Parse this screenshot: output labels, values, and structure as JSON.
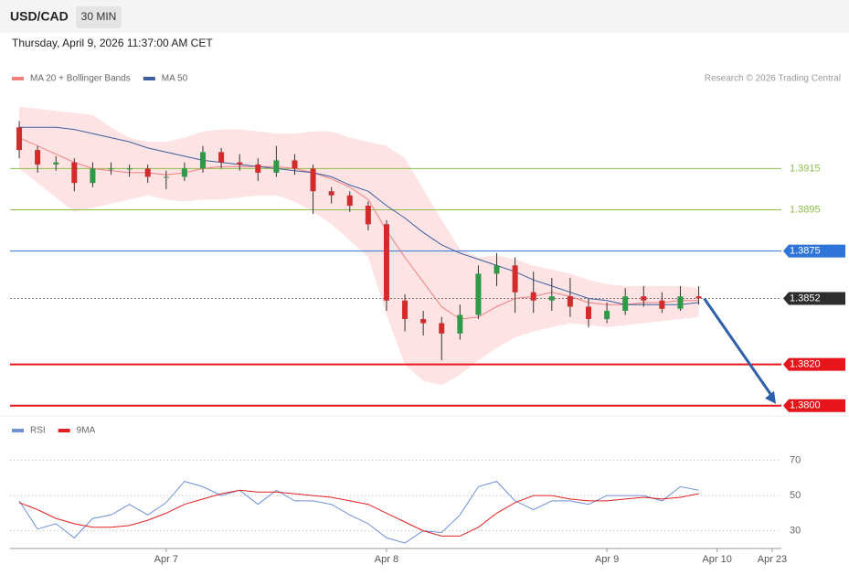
{
  "header": {
    "symbol": "USD/CAD",
    "interval": "30 MIN",
    "datetime": "Thursday, April 9, 2026 11:37:00 AM CET"
  },
  "chart_data": [
    {
      "type": "candlestick",
      "credit": "Research © 2026 Trading Central",
      "categories": [
        null,
        null,
        null,
        null,
        null,
        null,
        null,
        null,
        "Apr 7",
        null,
        null,
        null,
        null,
        null,
        null,
        null,
        null,
        null,
        null,
        null,
        "Apr 8",
        null,
        null,
        null,
        null,
        null,
        null,
        null,
        null,
        null,
        null,
        null,
        "Apr 9",
        null,
        null,
        null,
        null,
        null,
        "Apr 10",
        null,
        null,
        "Apr 23"
      ],
      "open": [
        1.3935,
        1.3924,
        1.3917,
        1.3918,
        1.3908,
        1.3915,
        1.3915,
        1.3915,
        1.3911,
        1.3911,
        1.3915,
        1.3923,
        1.3918,
        1.3917,
        1.3913,
        1.3919,
        1.3915,
        1.3904,
        1.3902,
        1.3897,
        1.3888,
        1.3851,
        1.3842,
        1.384,
        1.3835,
        1.3844,
        1.3864,
        1.3868,
        1.3855,
        1.3851,
        1.3853,
        1.3848,
        1.3842,
        1.3846,
        1.3853,
        1.3851,
        1.3847,
        1.3853,
        null,
        null,
        null,
        null
      ],
      "high": [
        1.3938,
        1.3926,
        1.3921,
        1.392,
        1.3918,
        1.3918,
        1.3917,
        1.3917,
        1.3914,
        1.3918,
        1.3926,
        1.3925,
        1.3922,
        1.392,
        1.3926,
        1.3922,
        1.3917,
        1.3906,
        1.3904,
        1.3899,
        1.389,
        1.3854,
        1.3846,
        1.3843,
        1.3849,
        1.3868,
        1.3874,
        1.3872,
        1.3865,
        1.3862,
        1.3862,
        1.3852,
        1.385,
        1.3857,
        1.3858,
        1.3855,
        1.3858,
        1.3858,
        null,
        null,
        null,
        null
      ],
      "low": [
        1.392,
        1.3913,
        1.3914,
        1.3904,
        1.3906,
        1.3912,
        1.3911,
        1.3908,
        1.3905,
        1.3909,
        1.3913,
        1.3915,
        1.3914,
        1.3909,
        1.3911,
        1.3912,
        1.3893,
        1.3898,
        1.3894,
        1.3885,
        1.3846,
        1.3836,
        1.3834,
        1.3822,
        1.3832,
        1.3842,
        1.3858,
        1.3845,
        1.3845,
        1.3846,
        1.3843,
        1.3838,
        1.384,
        1.3844,
        1.3848,
        1.3845,
        1.3846,
        1.3849,
        null,
        null,
        null,
        null
      ],
      "close": [
        1.3924,
        1.3917,
        1.3918,
        1.3908,
        1.3915,
        1.3915,
        1.3915,
        1.3911,
        1.3911,
        1.3915,
        1.3923,
        1.3918,
        1.3917,
        1.3913,
        1.3919,
        1.3915,
        1.3904,
        1.3902,
        1.3897,
        1.3888,
        1.3851,
        1.3842,
        1.384,
        1.3835,
        1.3844,
        1.3864,
        1.3868,
        1.3855,
        1.3851,
        1.3853,
        1.3848,
        1.3842,
        1.3846,
        1.3853,
        1.3851,
        1.3847,
        1.3853,
        1.3852,
        null,
        null,
        null,
        null
      ],
      "up_color": "#2e9a48",
      "down_color": "#d22b2b",
      "series": [
        {
          "name": "MA 20 + Bollinger Bands",
          "color": "#f08080",
          "band_color": "#fde3e3",
          "values": [
            1.393,
            1.3926,
            1.3922,
            1.3918,
            1.3915,
            1.3914,
            1.3913,
            1.3913,
            1.3912,
            1.3913,
            1.3915,
            1.3916,
            1.3916,
            1.3916,
            1.3916,
            1.3915,
            1.3913,
            1.391,
            1.3906,
            1.39,
            1.3885,
            1.3872,
            1.386,
            1.3848,
            1.3842,
            1.3843,
            1.3848,
            1.3852,
            1.3853,
            1.3855,
            1.3853,
            1.385,
            1.3849,
            1.3849,
            1.385,
            1.385,
            1.3851,
            1.3851,
            null,
            null,
            null,
            null
          ],
          "upper": [
            1.3945,
            1.3944,
            1.3943,
            1.3942,
            1.3941,
            1.3935,
            1.393,
            1.3928,
            1.3928,
            1.393,
            1.3933,
            1.3934,
            1.3934,
            1.3933,
            1.3932,
            1.3932,
            1.3933,
            1.3933,
            1.393,
            1.3928,
            1.3926,
            1.392,
            1.3905,
            1.389,
            1.3876,
            1.3872,
            1.3873,
            1.3871,
            1.3868,
            1.3866,
            1.3864,
            1.3861,
            1.3859,
            1.3858,
            1.3858,
            1.3858,
            1.3858,
            1.3857,
            null,
            null,
            null,
            null
          ],
          "lower": [
            1.3915,
            1.3908,
            1.3901,
            1.3894,
            1.3896,
            1.3898,
            1.39,
            1.3902,
            1.39,
            1.3899,
            1.39,
            1.39,
            1.3901,
            1.3902,
            1.3902,
            1.3899,
            1.3894,
            1.3888,
            1.388,
            1.3872,
            1.3844,
            1.382,
            1.3812,
            1.381,
            1.3815,
            1.3822,
            1.3828,
            1.3833,
            1.3836,
            1.3838,
            1.384,
            1.3839,
            1.3838,
            1.3839,
            1.384,
            1.3841,
            1.3842,
            1.3843,
            null,
            null,
            null,
            null
          ]
        },
        {
          "name": "MA 50",
          "color": "#3b5fa0",
          "values": [
            1.3935,
            1.3935,
            1.3935,
            1.3934,
            1.3932,
            1.393,
            1.3928,
            1.3925,
            1.3923,
            1.3921,
            1.3919,
            1.3918,
            1.3917,
            1.3916,
            1.3915,
            1.3914,
            1.3913,
            1.3911,
            1.3907,
            1.3904,
            1.3897,
            1.3891,
            1.3884,
            1.3878,
            1.3874,
            1.3871,
            1.3868,
            1.3865,
            1.3861,
            1.3858,
            1.3855,
            1.3852,
            1.3851,
            1.3849,
            1.3849,
            1.3849,
            1.3849,
            1.385,
            null,
            null,
            null,
            null
          ]
        }
      ],
      "levels": [
        {
          "value": 1.3915,
          "color": "#8dbf4a",
          "box": false,
          "thick": false
        },
        {
          "value": 1.3895,
          "color": "#8dbf4a",
          "box": false,
          "thick": false
        },
        {
          "value": 1.3875,
          "color": "#2f74d8",
          "box": true,
          "thick": false
        },
        {
          "value": 1.3852,
          "color": "#2d2d2d",
          "box": true,
          "thick": false,
          "dotted": true
        },
        {
          "value": 1.382,
          "label": "1.3820",
          "color": "#e8141b",
          "box": true,
          "thick": true
        },
        {
          "value": 1.38,
          "label": "1.3800",
          "color": "#e8141b",
          "box": true,
          "thick": true
        }
      ],
      "ylim": [
        1.3795,
        1.3948
      ]
    },
    {
      "type": "line",
      "series": [
        {
          "name": "RSI",
          "color": "#6f8fd9",
          "values": [
            47,
            31,
            34,
            26,
            37,
            39,
            45,
            39,
            46,
            58,
            55,
            50,
            53,
            45,
            53,
            47,
            47,
            45,
            39,
            34,
            26,
            23,
            30,
            29,
            39,
            55,
            58,
            47,
            42,
            47,
            47,
            45,
            50,
            50,
            50,
            47,
            55,
            53,
            null,
            null,
            null,
            null
          ]
        },
        {
          "name": "9MA",
          "color": "#e02020",
          "values": [
            46,
            42,
            37,
            34,
            32,
            32,
            33,
            36,
            40,
            45,
            48,
            51,
            53,
            52,
            52,
            51,
            50,
            49,
            47,
            45,
            40,
            35,
            30,
            27,
            27,
            32,
            40,
            46,
            50,
            50,
            48,
            47,
            47,
            48,
            49,
            48,
            49,
            51,
            null,
            null,
            null,
            null
          ]
        }
      ],
      "ylim": [
        21,
        77
      ],
      "yticks": [
        70,
        50,
        30
      ]
    }
  ]
}
